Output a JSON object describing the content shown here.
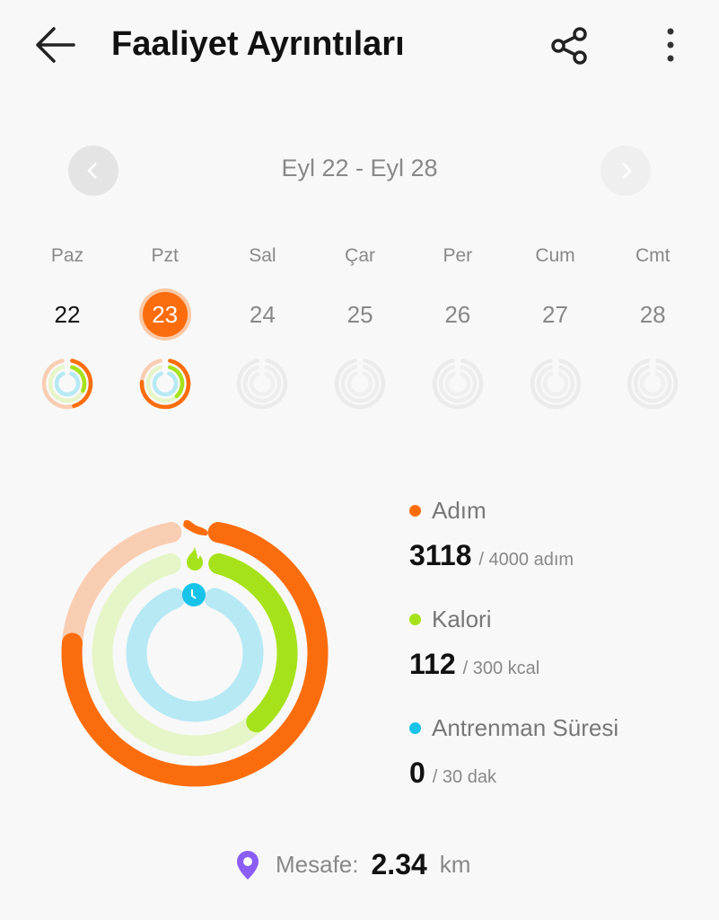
{
  "header": {
    "title": "Faaliyet Ayrıntıları",
    "back_icon": "arrow-left-icon",
    "share_icon": "share-icon",
    "more_icon": "more-vert-icon"
  },
  "week": {
    "range": "Eyl 22 - Eyl 28",
    "days": [
      {
        "name": "Paz",
        "num": "22",
        "rings": [
          0.45,
          0.3,
          0
        ],
        "selected": false
      },
      {
        "name": "Pzt",
        "num": "23",
        "rings": [
          0.78,
          0.37,
          0
        ],
        "selected": true
      },
      {
        "name": "Sal",
        "num": "24",
        "rings": null,
        "selected": false
      },
      {
        "name": "Çar",
        "num": "25",
        "rings": null,
        "selected": false
      },
      {
        "name": "Per",
        "num": "26",
        "rings": null,
        "selected": false
      },
      {
        "name": "Cum",
        "num": "27",
        "rings": null,
        "selected": false
      },
      {
        "name": "Cmt",
        "num": "28",
        "rings": null,
        "selected": false
      }
    ]
  },
  "colors": {
    "steps": "#fb6d0c",
    "steps_track": "#f9cdb2",
    "calories": "#a6e21a",
    "calories_track": "#e6f5c8",
    "duration": "#17c3e8",
    "duration_track": "#b6e9f4",
    "accent": "#fb6d0c",
    "distance_icon": "#8b5cf6"
  },
  "stats": [
    {
      "label": "Adım",
      "value": "3118",
      "goal": "/ 4000 adım",
      "fraction": 0.78
    },
    {
      "label": "Kalori",
      "value": "112",
      "goal": "/ 300 kcal",
      "fraction": 0.373
    },
    {
      "label": "Antrenman Süresi",
      "value": "0",
      "goal": "/ 30 dak",
      "fraction": 0
    }
  ],
  "distance": {
    "label": "Mesafe:",
    "value": "2.34",
    "unit": "km"
  }
}
